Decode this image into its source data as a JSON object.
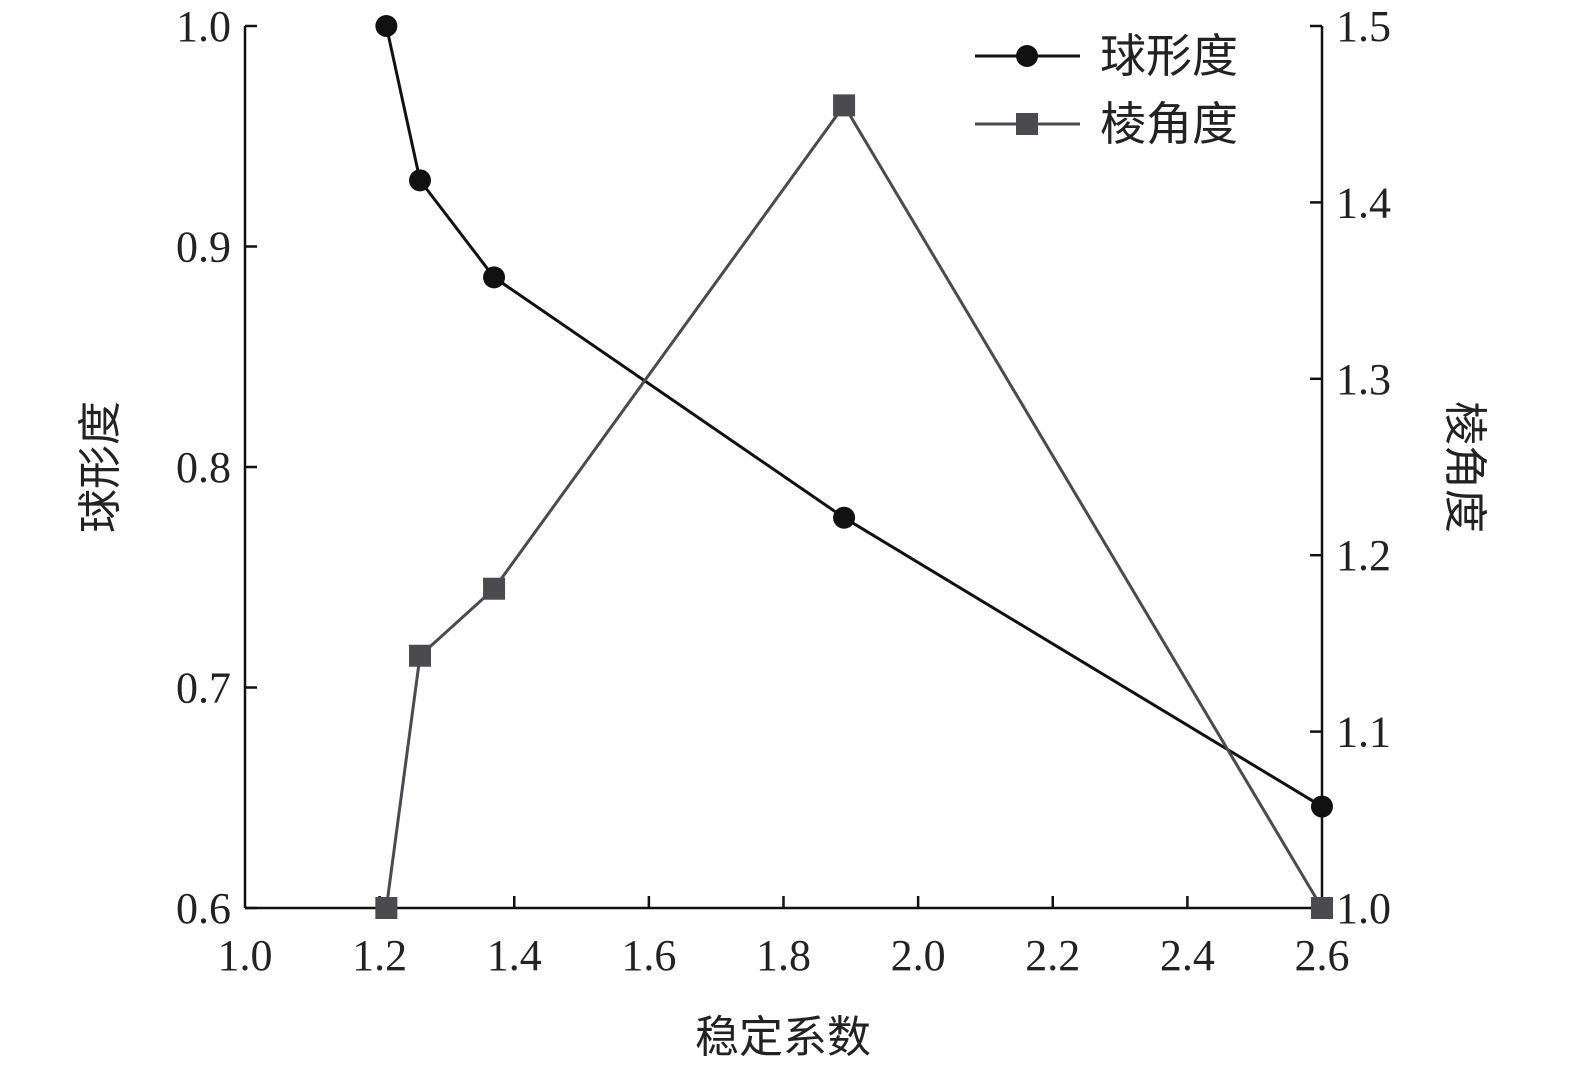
{
  "chart_data": {
    "type": "line",
    "title": "",
    "xlabel": "稳定系数",
    "ylabel_left": "球形度",
    "ylabel_right": "棱角度",
    "xlim": [
      1.0,
      2.6
    ],
    "ylim_left": [
      0.6,
      1.0
    ],
    "ylim_right": [
      1.0,
      1.5
    ],
    "x_ticks": [
      "1.0",
      "1.2",
      "1.4",
      "1.6",
      "1.8",
      "2.0",
      "2.2",
      "2.4",
      "2.6"
    ],
    "y_left_ticks": [
      "0.6",
      "0.7",
      "0.8",
      "0.9",
      "1.0"
    ],
    "y_right_ticks": [
      "1.0",
      "1.1",
      "1.2",
      "1.3",
      "1.4",
      "1.5"
    ],
    "grid": false,
    "legend_position": "top-right",
    "series": [
      {
        "name": "球形度",
        "axis": "left",
        "marker": "circle",
        "color": "#111111",
        "x": [
          1.21,
          1.26,
          1.37,
          1.89,
          2.6
        ],
        "y": [
          1.0,
          0.93,
          0.886,
          0.777,
          0.646
        ]
      },
      {
        "name": "棱角度",
        "axis": "right",
        "marker": "square",
        "color": "#4a4a4f",
        "x": [
          1.21,
          1.26,
          1.37,
          1.89,
          2.6
        ],
        "y": [
          1.0,
          1.143,
          1.181,
          1.455,
          1.0
        ]
      }
    ]
  }
}
